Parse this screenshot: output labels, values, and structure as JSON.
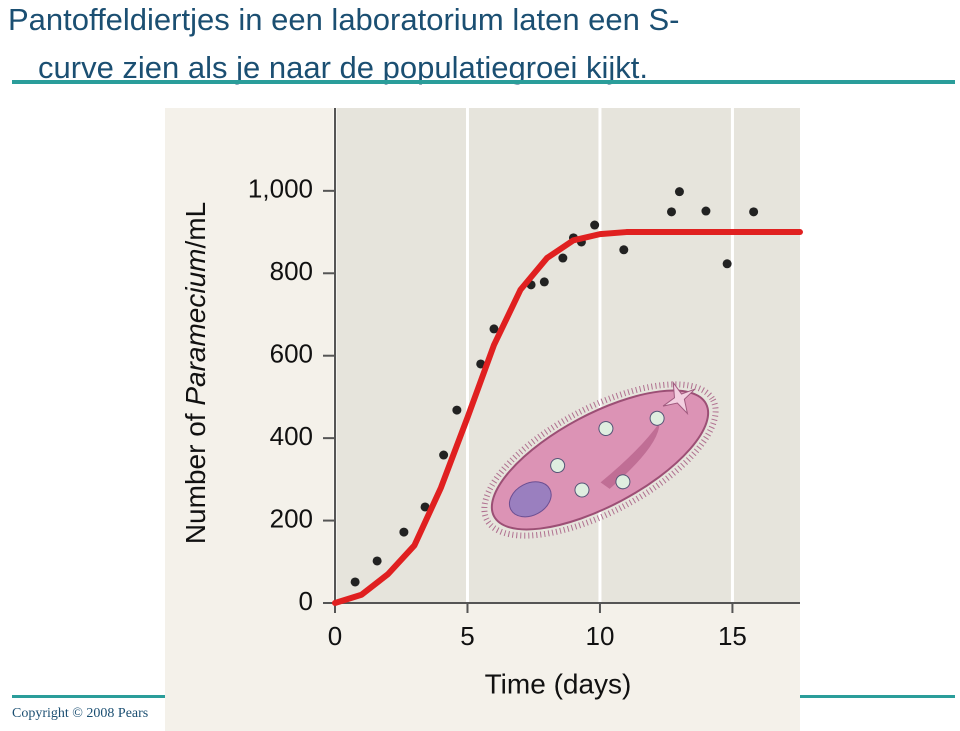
{
  "header": {
    "title_lines": [
      "Pantoffeldiertjes in een laboratorium laten een S-",
      "curve zien als je naar de populatiegroei kijkt."
    ]
  },
  "footer": {
    "copyright": "Copyright © 2008 Pears"
  },
  "chart_data": {
    "type": "scatter",
    "y_label_parts": [
      "Number of ",
      "Paramecium",
      "/mL"
    ],
    "x_label": "Time (days)",
    "xlim": [
      0,
      17.55
    ],
    "xticks": [
      0,
      5,
      10,
      15
    ],
    "ylim": [
      0,
      1201
    ],
    "yticks": [
      0,
      200,
      400,
      600,
      800,
      {
        "value": 1000,
        "label": "1,000"
      }
    ],
    "grid": true,
    "series": [
      {
        "color": "#222222",
        "x": [
          0.76,
          1.59,
          2.6,
          3.4,
          4.1,
          4.6,
          5.5,
          6.0,
          7.4,
          7.9,
          8.6,
          9.0,
          9.3,
          9.8,
          10.9,
          12.7,
          13.0,
          14.0,
          14.8,
          15.8
        ],
        "values": [
          51,
          102,
          172,
          233,
          359,
          468,
          580,
          665,
          772,
          779,
          837,
          886,
          876,
          917,
          857,
          949,
          998,
          951,
          823,
          949
        ]
      },
      {
        "type": "line",
        "color": "#e02020",
        "x": [
          0,
          1,
          2,
          3,
          4,
          5,
          6,
          7,
          8,
          9,
          10,
          11,
          12,
          17.55
        ],
        "values": [
          0,
          20,
          70,
          140,
          280,
          450,
          626,
          760,
          837,
          880,
          895,
          900,
          900,
          900
        ]
      }
    ]
  }
}
